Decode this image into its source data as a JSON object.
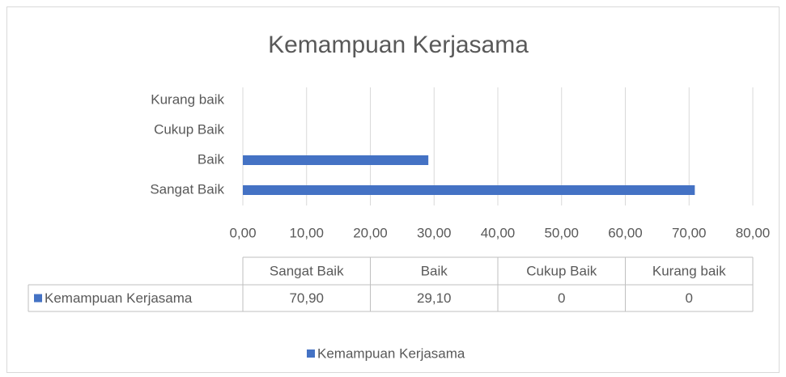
{
  "chart_data": {
    "type": "hbar",
    "title": "Kemampuan Kerjasama",
    "categories": [
      "Sangat Baik",
      "Baik",
      "Cukup Baik",
      "Kurang baik"
    ],
    "series": [
      {
        "name": "Kemampuan Kerjasama",
        "color": "#4472c4",
        "values": [
          70.9,
          29.1,
          0,
          0
        ],
        "value_labels": [
          "70,90",
          "29,10",
          "0",
          "0"
        ]
      }
    ],
    "xlim": [
      0,
      80
    ],
    "xticks": [
      {
        "value": 0,
        "label": "0,00"
      },
      {
        "value": 10,
        "label": "10,00"
      },
      {
        "value": 20,
        "label": "20,00"
      },
      {
        "value": 30,
        "label": "30,00"
      },
      {
        "value": 40,
        "label": "40,00"
      },
      {
        "value": 50,
        "label": "50,00"
      },
      {
        "value": 60,
        "label": "60,00"
      },
      {
        "value": 70,
        "label": "70,00"
      },
      {
        "value": 80,
        "label": "80,00"
      }
    ],
    "grid": true,
    "legend": "bottom",
    "data_table": true
  }
}
